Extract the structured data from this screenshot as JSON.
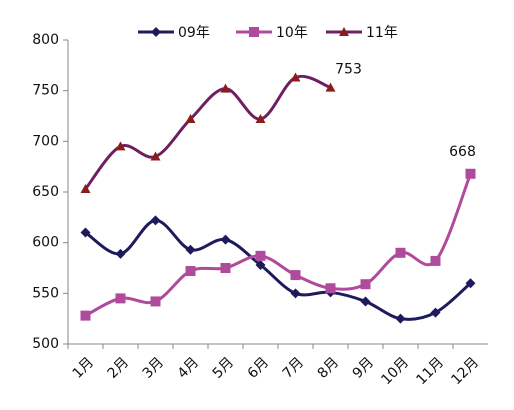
{
  "chart_data": {
    "type": "line",
    "categories": [
      "1月",
      "2月",
      "3月",
      "4月",
      "5月",
      "6月",
      "7月",
      "8月",
      "9月",
      "10月",
      "11月",
      "12月"
    ],
    "series": [
      {
        "name": "09年",
        "color": "#1e1b5c",
        "marker": "diamond",
        "values": [
          610,
          589,
          622,
          593,
          603,
          578,
          550,
          551,
          542,
          525,
          531,
          560
        ]
      },
      {
        "name": "10年",
        "color": "#b04a9c",
        "marker": "square",
        "values": [
          528,
          545,
          542,
          572,
          575,
          587,
          568,
          555,
          559,
          590,
          582,
          668
        ]
      },
      {
        "name": "11年",
        "color": "#6e1f63",
        "marker": "triangle",
        "marker_color": "#8b1c1c",
        "values": [
          653,
          695,
          685,
          722,
          752,
          722,
          763,
          753,
          null,
          null,
          null,
          null
        ]
      }
    ],
    "ylim": [
      500,
      800
    ],
    "yticks": [
      500,
      550,
      600,
      650,
      700,
      750,
      800
    ],
    "grid": false
  }
}
